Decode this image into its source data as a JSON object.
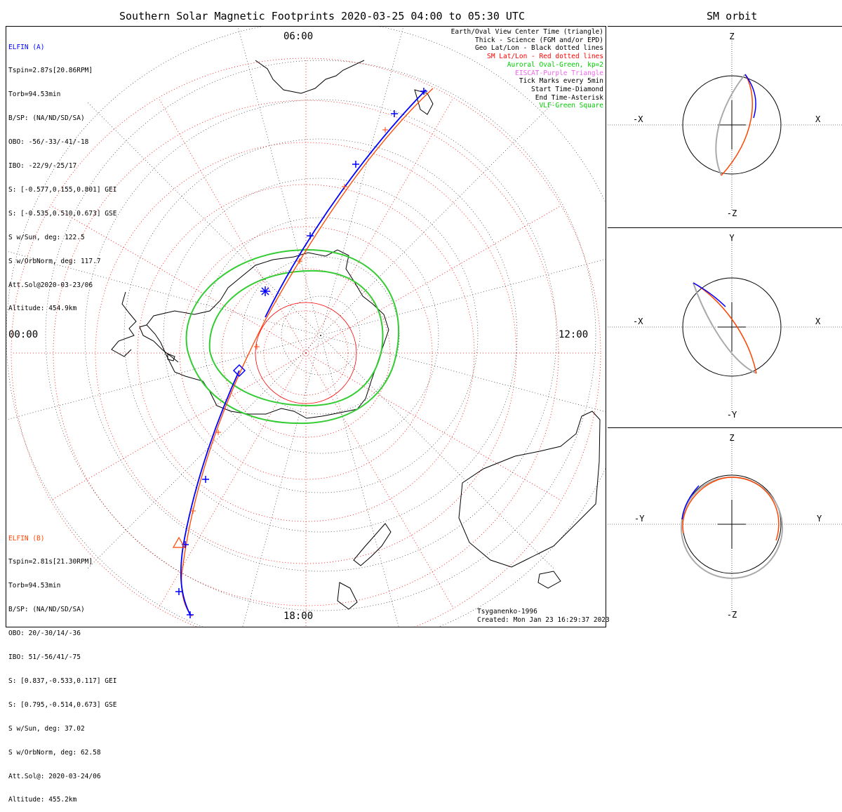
{
  "titles": {
    "main": "Southern Solar Magnetic Footprints 2020-03-25 04:00 to 05:30 UTC",
    "orbit": "SM orbit"
  },
  "mlt_labels": {
    "top": "06:00",
    "right": "12:00",
    "bottom": "18:00",
    "left": "00:00"
  },
  "spacecraft_a": {
    "name": "ELFIN (A)",
    "color": "#0000ff",
    "lines": [
      "Tspin=2.87s[20.86RPM]",
      "Torb=94.53min",
      "B/SP: (NA/ND/SD/SA)",
      "OBO: -56/-33/-41/-18",
      "IBO: -22/9/-25/17",
      "S: [-0.577,0.155,0.801] GEI",
      "S: [-0.535,0.510,0.673] GSE",
      "S w/Sun, deg: 122.5",
      "S w/OrbNorm, deg: 117.7",
      "Att.Sol@2020-03-23/06",
      "Altitude: 454.9km"
    ]
  },
  "spacecraft_b": {
    "name": "ELFIN (B)",
    "color": "#ff4500",
    "lines": [
      "Tspin=2.81s[21.30RPM]",
      "Torb=94.53min",
      "B/SP: (NA/ND/SD/SA)",
      "OBO: 20/-30/14/-36",
      "IBO: 51/-56/41/-75",
      "S: [0.837,-0.533,0.117] GEI",
      "S: [0.795,-0.514,0.673] GSE",
      "S w/Sun, deg: 37.02",
      "S w/OrbNorm, deg: 62.58",
      "Att.Sol@: 2020-03-24/06",
      "Altitude: 455.2km"
    ]
  },
  "legend": [
    {
      "text": "Earth/Oval View Center Time (triangle)",
      "color": "#000000"
    },
    {
      "text": "Thick - Science (FGM and/or EPD)",
      "color": "#000000"
    },
    {
      "text": "Geo Lat/Lon - Black dotted lines",
      "color": "#000000"
    },
    {
      "text": "SM Lat/Lon - Red dotted lines",
      "color": "#ff0000"
    },
    {
      "text": "Auroral Oval-Green, kp=2",
      "color": "#00cc00"
    },
    {
      "text": "EISCAT-Purple Triangle",
      "color": "#ee66ee"
    },
    {
      "text": "Tick Marks every 5min",
      "color": "#000000"
    },
    {
      "text": "Start Time-Diamond",
      "color": "#000000"
    },
    {
      "text": "End Time-Asterisk",
      "color": "#000000"
    },
    {
      "text": "VLF-Green Square",
      "color": "#00cc00"
    }
  ],
  "credits": {
    "model": "Tsyganenko-1996",
    "created": "Created: Mon Jan 23 16:29:37 2023"
  },
  "orbit_panels": [
    {
      "id": "xz",
      "top": "Z",
      "bottom": "-Z",
      "left": "-X",
      "right": "X"
    },
    {
      "id": "xy",
      "top": "Y",
      "bottom": "-Y",
      "left": "-X",
      "right": "X"
    },
    {
      "id": "yz",
      "top": "Z",
      "bottom": "-Z",
      "left": "-Y",
      "right": "Y"
    }
  ],
  "colors": {
    "elfin_a": "#0000ff",
    "elfin_b": "#ff4500",
    "oval": "#33cc33",
    "sm_grid": "#ff0000",
    "geo_grid": "#000000",
    "orbit_gray": "#aaaaaa"
  },
  "chart_data": {
    "type": "polar map",
    "hemisphere": "southern",
    "time_range_utc": [
      "2020-03-25 04:00",
      "2020-03-25 05:30"
    ],
    "mlt_axis": [
      "00:00",
      "06:00",
      "12:00",
      "18:00"
    ],
    "auroral_oval_kp": 2,
    "tick_interval_min": 5
  }
}
